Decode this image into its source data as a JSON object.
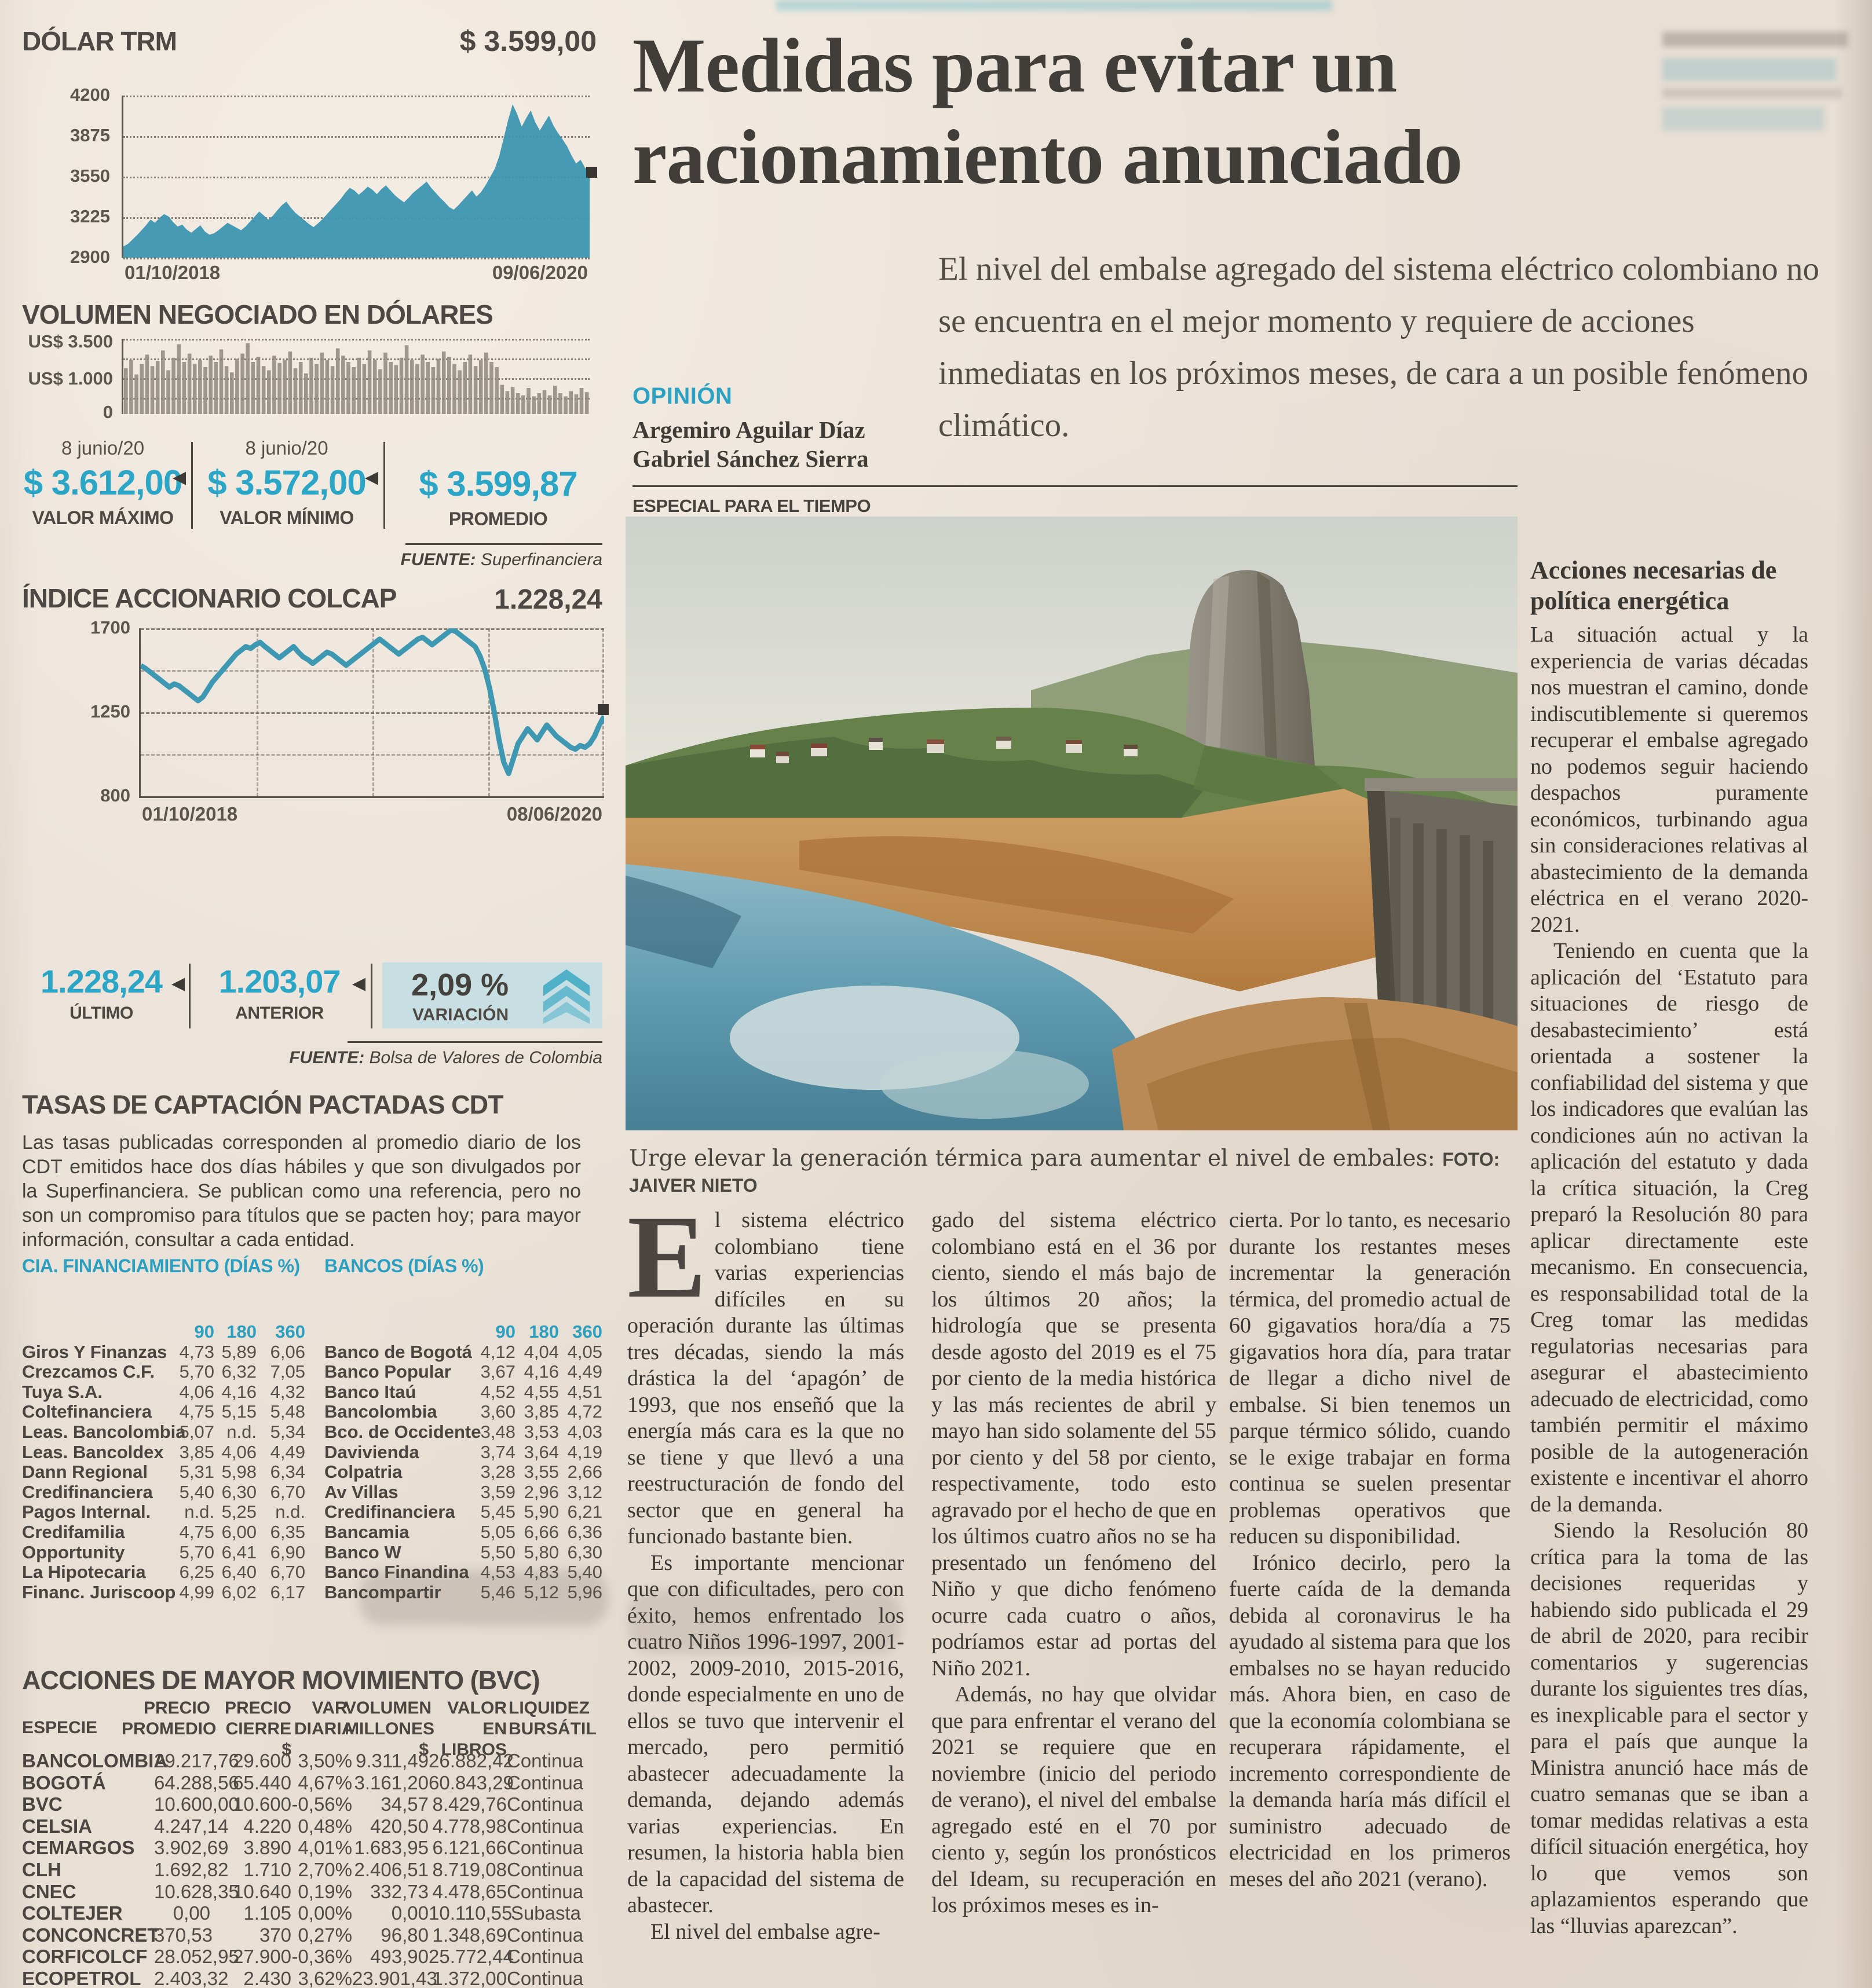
{
  "charts": {
    "dolar": {
      "title": "DÓLAR TRM",
      "annotation": "$ 3.599,00",
      "type": "area",
      "color": "#3d96b1",
      "ylim": [
        2900,
        4200
      ],
      "yticks": [
        "4200",
        "3875",
        "3550",
        "3225",
        "2900"
      ],
      "xlabels": [
        "01/10/2018",
        "09/06/2020"
      ],
      "series": [
        2990,
        3010,
        3045,
        3080,
        3120,
        3160,
        3205,
        3180,
        3220,
        3250,
        3230,
        3185,
        3150,
        3165,
        3125,
        3100,
        3130,
        3160,
        3110,
        3085,
        3095,
        3120,
        3150,
        3180,
        3160,
        3140,
        3120,
        3150,
        3190,
        3230,
        3270,
        3240,
        3205,
        3235,
        3280,
        3320,
        3350,
        3300,
        3260,
        3230,
        3200,
        3170,
        3145,
        3175,
        3210,
        3250,
        3290,
        3330,
        3370,
        3420,
        3460,
        3440,
        3405,
        3435,
        3470,
        3445,
        3410,
        3450,
        3480,
        3440,
        3400,
        3370,
        3345,
        3380,
        3420,
        3450,
        3480,
        3510,
        3460,
        3420,
        3380,
        3345,
        3305,
        3285,
        3320,
        3360,
        3400,
        3440,
        3390,
        3425,
        3480,
        3545,
        3610,
        3710,
        3855,
        4005,
        4130,
        4050,
        3950,
        4020,
        4080,
        3985,
        3920,
        3980,
        4040,
        3960,
        3900,
        3850,
        3795,
        3720,
        3655,
        3685,
        3620,
        3599
      ]
    },
    "volumen": {
      "title": "VOLUMEN NEGOCIADO EN DÓLARES",
      "type": "bar",
      "color": "#8e8880",
      "ylim": [
        0,
        3500
      ],
      "yticks": [
        "US$ 3.500",
        "US$ 1.000",
        "0"
      ],
      "values": [
        2200,
        2600,
        1900,
        2400,
        2850,
        2300,
        2550,
        3050,
        2100,
        2700,
        3350,
        2500,
        2900,
        2400,
        2600,
        2250,
        2800,
        2500,
        3100,
        2300,
        2000,
        2650,
        2900,
        3400,
        2500,
        2750,
        2300,
        2100,
        2800,
        2450,
        2600,
        3000,
        2200,
        2500,
        1950,
        2700,
        2400,
        2950,
        2600,
        2300,
        3150,
        2800,
        2500,
        2250,
        2700,
        2400,
        3050,
        2600,
        2150,
        2950,
        2500,
        2350,
        2700,
        3300,
        2600,
        2400,
        2850,
        2500,
        2250,
        2650,
        3000,
        2750,
        2400,
        2100,
        2500,
        2850,
        2300,
        2600,
        2950,
        2500,
        2250,
        1400,
        1100,
        1300,
        1000,
        900,
        1250,
        850,
        1000,
        1150,
        900,
        1350,
        1000,
        850,
        1100,
        950,
        1250,
        1050
      ]
    },
    "colcap": {
      "title": "ÍNDICE ACCIONARIO COLCAP",
      "annotation": "1.228,24",
      "type": "line",
      "color": "#3f98b2",
      "ylim": [
        800,
        1700
      ],
      "yticks": [
        "1700",
        "1250",
        "800"
      ],
      "xlabels": [
        "01/10/2018",
        "08/06/2020"
      ],
      "series": [
        1500,
        1485,
        1465,
        1445,
        1425,
        1405,
        1385,
        1402,
        1392,
        1372,
        1352,
        1332,
        1312,
        1332,
        1372,
        1412,
        1442,
        1472,
        1502,
        1532,
        1562,
        1582,
        1602,
        1592,
        1612,
        1625,
        1602,
        1582,
        1562,
        1542,
        1562,
        1582,
        1602,
        1572,
        1547,
        1532,
        1512,
        1532,
        1552,
        1572,
        1562,
        1542,
        1522,
        1502,
        1522,
        1542,
        1562,
        1582,
        1602,
        1622,
        1642,
        1622,
        1602,
        1582,
        1562,
        1582,
        1602,
        1622,
        1642,
        1652,
        1632,
        1612,
        1632,
        1652,
        1672,
        1692,
        1682,
        1662,
        1642,
        1622,
        1602,
        1552,
        1482,
        1382,
        1252,
        1102,
        982,
        922,
        1002,
        1082,
        1122,
        1162,
        1132,
        1102,
        1142,
        1182,
        1152,
        1122,
        1102,
        1082,
        1062,
        1052,
        1072,
        1062,
        1082,
        1122,
        1182,
        1228
      ]
    }
  },
  "dolar_stats": {
    "items": [
      {
        "date": "8 junio/20",
        "value": "$ 3.612,00",
        "label": "VALOR MÁXIMO"
      },
      {
        "date": "8 junio/20",
        "value": "$ 3.572,00",
        "label": "VALOR MÍNIMO"
      },
      {
        "date": "",
        "value": "$ 3.599,87",
        "label": "PROMEDIO"
      }
    ],
    "fuente_prefix": "FUENTE:",
    "fuente_name": " Superfinanciera"
  },
  "colcap_stats": {
    "items": [
      {
        "value": "1.228,24",
        "label": "ÚLTIMO"
      },
      {
        "value": "1.203,07",
        "label": "ANTERIOR"
      },
      {
        "value": "2,09 %",
        "label": "VARIACIÓN"
      }
    ],
    "fuente_prefix": "FUENTE:",
    "fuente_name": " Bolsa de Valores de Colombia"
  },
  "tasas": {
    "title": "TASAS DE CAPTACIÓN PACTADAS CDT",
    "intro": "Las tasas publicadas corresponden al promedio diario de los CDT emitidos hace dos días hábiles y que son divulgados por la Superfinanciera. Se publican como una referencia, pero no son un compromiso para títulos que se pacten hoy; para mayor información, consultar a cada entidad.",
    "left": {
      "header": "CIA. FINANCIAMIENTO (DÍAS %)",
      "cols": [
        "90",
        "180",
        "360"
      ],
      "rows": [
        [
          "Giros Y Finanzas",
          "4,73",
          "5,89",
          "6,06"
        ],
        [
          "Crezcamos C.F.",
          "5,70",
          "6,32",
          "7,05"
        ],
        [
          "Tuya S.A.",
          "4,06",
          "4,16",
          "4,32"
        ],
        [
          "Coltefinanciera",
          "4,75",
          "5,15",
          "5,48"
        ],
        [
          "Leas. Bancolombia",
          "5,07",
          "n.d.",
          "5,34"
        ],
        [
          "Leas. Bancoldex",
          "3,85",
          "4,06",
          "4,49"
        ],
        [
          "Dann Regional",
          "5,31",
          "5,98",
          "6,34"
        ],
        [
          "Credifinanciera",
          "5,40",
          "6,30",
          "6,70"
        ],
        [
          "Pagos Internal.",
          "n.d.",
          "5,25",
          "n.d."
        ],
        [
          "Credifamilia",
          "4,75",
          "6,00",
          "6,35"
        ],
        [
          "Opportunity",
          "5,70",
          "6,41",
          "6,90"
        ],
        [
          "La Hipotecaria",
          "6,25",
          "6,40",
          "6,70"
        ],
        [
          "Financ. Juriscoop",
          "4,99",
          "6,02",
          "6,17"
        ]
      ]
    },
    "right": {
      "header": "BANCOS (DÍAS %)",
      "cols": [
        "90",
        "180",
        "360"
      ],
      "rows": [
        [
          "Banco de Bogotá",
          "4,12",
          "4,04",
          "4,05"
        ],
        [
          "Banco Popular",
          "3,67",
          "4,16",
          "4,49"
        ],
        [
          "Banco Itaú",
          "4,52",
          "4,55",
          "4,51"
        ],
        [
          "Bancolombia",
          "3,60",
          "3,85",
          "4,72"
        ],
        [
          "Bco. de Occidente",
          "3,48",
          "3,53",
          "4,03"
        ],
        [
          "Davivienda",
          "3,74",
          "3,64",
          "4,19"
        ],
        [
          "Colpatria",
          "3,28",
          "3,55",
          "2,66"
        ],
        [
          "Av Villas",
          "3,59",
          "2,96",
          "3,12"
        ],
        [
          "Credifinanciera",
          "5,45",
          "5,90",
          "6,21"
        ],
        [
          "Bancamia",
          "5,05",
          "6,66",
          "6,36"
        ],
        [
          "Banco W",
          "5,50",
          "5,80",
          "6,30"
        ],
        [
          "Banco Finandina",
          "4,53",
          "4,83",
          "5,40"
        ],
        [
          "Bancompartir",
          "5,46",
          "5,12",
          "5,96"
        ]
      ]
    }
  },
  "acciones": {
    "title": "ACCIONES DE MAYOR MOVIMIENTO (BVC)",
    "headers": [
      "ESPECIE",
      "PRECIO\nPROMEDIO",
      "PRECIO\nCIERRE $",
      "VAR.\nDIARIA",
      "VOLUMEN\nMILLONES $",
      "VALOR\nEN LIBROS",
      "LIQUIDEZ\nBURSÁTIL"
    ],
    "rows": [
      [
        "BANCOLOMBIA",
        "29.217,76",
        "29.600",
        "3,50%",
        "9.311,49",
        "26.882,42",
        "Continua"
      ],
      [
        "BOGOTÁ",
        "64.288,56",
        "65.440",
        "4,67%",
        "3.161,20",
        "60.843,29",
        "Continua"
      ],
      [
        "BVC",
        "10.600,00",
        "10.600",
        "-0,56%",
        "34,57",
        "8.429,76",
        "Continua"
      ],
      [
        "CELSIA",
        "4.247,14",
        "4.220",
        "0,48%",
        "420,50",
        "4.778,98",
        "Continua"
      ],
      [
        "CEMARGOS",
        "3.902,69",
        "3.890",
        "4,01%",
        "1.683,95",
        "6.121,66",
        "Continua"
      ],
      [
        "CLH",
        "1.692,82",
        "1.710",
        "2,70%",
        "2.406,51",
        "8.719,08",
        "Continua"
      ],
      [
        "CNEC",
        "10.628,35",
        "10.640",
        "0,19%",
        "332,73",
        "4.478,65",
        "Continua"
      ],
      [
        "COLTEJER",
        "0,00",
        "1.105",
        "0,00%",
        "0,00",
        "10.110,55",
        "Subasta"
      ],
      [
        "CONCONCRET",
        "370,53",
        "370",
        "0,27%",
        "96,80",
        "1.348,69",
        "Continua"
      ],
      [
        "CORFICOLCF",
        "28.052,95",
        "27.900",
        "-0,36%",
        "493,90",
        "25.772,44",
        "Continua"
      ],
      [
        "ECOPETROL",
        "2.403,32",
        "2.430",
        "3,62%",
        "23.901,43",
        "1.372,00",
        "Continua"
      ]
    ]
  },
  "article": {
    "headline": "Medidas para evitar un racionamiento anunciado",
    "lede": "El nivel del embalse agregado del sistema eléctrico colombiano no se encuentra en el mejor momento y requiere de acciones inmediatas en los próximos meses, de cara a un posible fenómeno climático.",
    "kicker": "OPINIÓN",
    "authors": [
      "Argemiro Aguilar Díaz",
      "Gabriel Sánchez Sierra"
    ],
    "credit": "ESPECIAL PARA EL TIEMPO",
    "caption": "Urge elevar la generación térmica para aumentar el nivel de embales: ",
    "caption_credit": "FOTO: JAIVER NIETO",
    "dropcap": "E",
    "col1": [
      "l sistema eléctrico colombiano tiene varias experiencias difíciles en su operación durante las últimas tres décadas, siendo la más drástica la del ‘apagón’ de 1993, que nos enseñó que la energía más cara es la que no se tiene y que llevó a una reestructuración de fondo del sector que en general ha funcionado bastante bien.",
      "Es importante mencionar que con dificultades, pero con éxito, hemos enfrentado los cuatro Niños 1996-1997, 2001-2002, 2009-2010, 2015-2016, donde especialmente en uno de ellos se tuvo que intervenir el mercado, pero permitió abastecer adecuadamente la demanda, dejando además varias experiencias. En resumen, la historia habla bien de la capacidad del sistema de abastecer.",
      "El nivel del embalse agre-"
    ],
    "col2": [
      "gado del sistema eléctrico colombiano está en el 36 por ciento, siendo el más bajo de los últimos 20 años; la hidrología que se presenta desde agosto del 2019 es el 75 por ciento de la media histórica y las más recientes de abril y mayo han sido solamente del 55 por ciento y del 58 por ciento, respectivamente, todo esto agravado por el hecho de que en los últimos cuatro años no se ha presentado un fenómeno del Niño y que dicho fenómeno ocurre cada cuatro o años, podríamos estar ad portas del Niño 2021.",
      "Además, no hay que olvidar que para enfrentar el verano del 2021 se requiere que en noviembre (inicio del periodo de verano), el nivel del embalse agregado esté en el 70 por ciento y, según los pronósticos del Ideam, su recuperación en los próximos meses es in-"
    ],
    "col3": [
      "cierta. Por lo tanto, es necesario durante los restantes meses incrementar la generación térmica, del promedio actual de 60 gigavatios hora/día a 75 gigavatios hora día, para tratar de llegar a dicho nivel de embalse. Si bien tenemos un parque térmico sólido, cuando se le exige trabajar en forma continua se suelen presentar problemas operativos que reducen su disponibilidad.",
      "Irónico decirlo, pero la fuerte caída de la demanda debida al coronavirus le ha ayudado al sistema para que los embalses no se hayan reducido más. Ahora bien, en caso de que la economía colombiana se recuperara rápidamente, el incremento correspondiente de la demanda haría más difícil el suministro adecuado de electricidad en los primeros meses del año 2021 (verano)."
    ],
    "sidebar": {
      "heading": "Acciones necesarias de política energética",
      "paragraphs": [
        "La situación actual y la experiencia de varias décadas nos muestran el camino, donde indiscutiblemente si queremos recuperar el embalse agregado no podemos seguir haciendo despachos puramente económicos, turbinando agua sin consideraciones relativas al abastecimiento de la demanda eléctrica en el verano 2020-2021.",
        "Teniendo en cuenta que la aplicación del ‘Estatuto para situaciones de riesgo de desabastecimiento’ está orientada a sostener la confiabilidad del sistema y que los indicadores que evalúan las condiciones aún no activan la aplicación del estatuto y dada la crítica situación, la Creg preparó la Resolución 80 para aplicar directamente este mecanismo. En consecuencia, es responsabilidad total de la Creg tomar las medidas regulatorias necesarias para asegurar el abastecimiento adecuado de electricidad, como también permitir el máximo posible de la autogeneración existente e incentivar el ahorro de la demanda.",
        "Siendo la Resolución 80 crítica para la toma de las decisiones requeridas y habiendo sido publicada el 29 de abril de 2020, para recibir comentarios y sugerencias durante los siguientes tres días, es inexplicable para el sector y para el país que aunque la Ministra anunció hace más de cuatro semanas que se iban a tomar medidas relativas a esta difícil situación energética, hoy lo que vemos son aplazamientos esperando que las “lluvias aparezcan”."
      ]
    }
  }
}
